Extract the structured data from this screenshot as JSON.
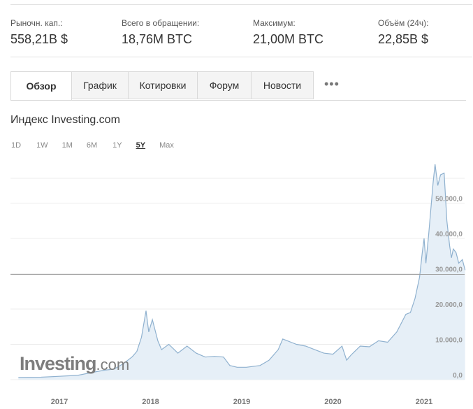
{
  "stats": [
    {
      "label": "Рыночн. кап.:",
      "value": "558,21B $"
    },
    {
      "label": "Всего в обращении:",
      "value": "18,76M BTC"
    },
    {
      "label": "Максимум:",
      "value": "21,00M BTC"
    },
    {
      "label": "Объём (24ч):",
      "value": "22,85B $"
    }
  ],
  "tabs": [
    "Обзор",
    "График",
    "Котировки",
    "Форум",
    "Новости"
  ],
  "more_label": "•••",
  "index_title": "Индекс Investing.com",
  "ranges": [
    "1D",
    "1W",
    "1M",
    "6M",
    "1Y",
    "5Y",
    "Max"
  ],
  "active_range": "5Y",
  "watermark": {
    "brand": "Investing",
    "suffix": ".com"
  },
  "colors": {
    "line": "#8fb1cf",
    "fill": "#e6eff7",
    "grid": "#ececec",
    "reference": "#a3a3a3"
  },
  "chart_data": {
    "type": "area",
    "x_ticks": [
      "2017",
      "2018",
      "2019",
      "2020",
      "2021"
    ],
    "y_ticks": [
      "0,0",
      "10.000,0",
      "20.000,0",
      "30.000,0",
      "40.000,0",
      "50.000,0"
    ],
    "ylim": [
      0,
      60000
    ],
    "reference_value": 29800,
    "series": [
      {
        "x": [
          2016.55,
          2016.8,
          2017.0,
          2017.2,
          2017.35,
          2017.5,
          2017.6,
          2017.7,
          2017.8,
          2017.85,
          2017.9,
          2017.95,
          2017.98,
          2018.02,
          2018.08,
          2018.12,
          2018.2,
          2018.3,
          2018.4,
          2018.5,
          2018.6,
          2018.7,
          2018.8,
          2018.87,
          2018.95,
          2019.05,
          2019.2,
          2019.3,
          2019.4,
          2019.45,
          2019.5,
          2019.55,
          2019.6,
          2019.7,
          2019.8,
          2019.9,
          2020.0,
          2020.1,
          2020.15,
          2020.2,
          2020.3,
          2020.4,
          2020.5,
          2020.6,
          2020.7,
          2020.8,
          2020.85,
          2020.9,
          2020.95,
          2020.98,
          2021.0,
          2021.02,
          2021.05,
          2021.08,
          2021.1,
          2021.12,
          2021.15,
          2021.18,
          2021.22,
          2021.25,
          2021.28,
          2021.3,
          2021.32,
          2021.35,
          2021.38,
          2021.42,
          2021.45
        ],
        "values": [
          650,
          700,
          950,
          1200,
          2000,
          2700,
          3000,
          4500,
          6500,
          8000,
          12000,
          19500,
          13500,
          17000,
          11000,
          8500,
          10000,
          7500,
          9500,
          7500,
          6400,
          6600,
          6400,
          4000,
          3500,
          3500,
          4000,
          5500,
          8500,
          11500,
          11000,
          10500,
          10000,
          9500,
          8500,
          7500,
          7200,
          9500,
          5500,
          7000,
          9500,
          9300,
          11000,
          10600,
          13500,
          18500,
          19000,
          23000,
          29000,
          36000,
          40000,
          33000,
          41000,
          50000,
          56000,
          61000,
          55000,
          58000,
          58500,
          45000,
          38000,
          34500,
          37000,
          36000,
          33000,
          34000,
          31000
        ]
      }
    ]
  }
}
